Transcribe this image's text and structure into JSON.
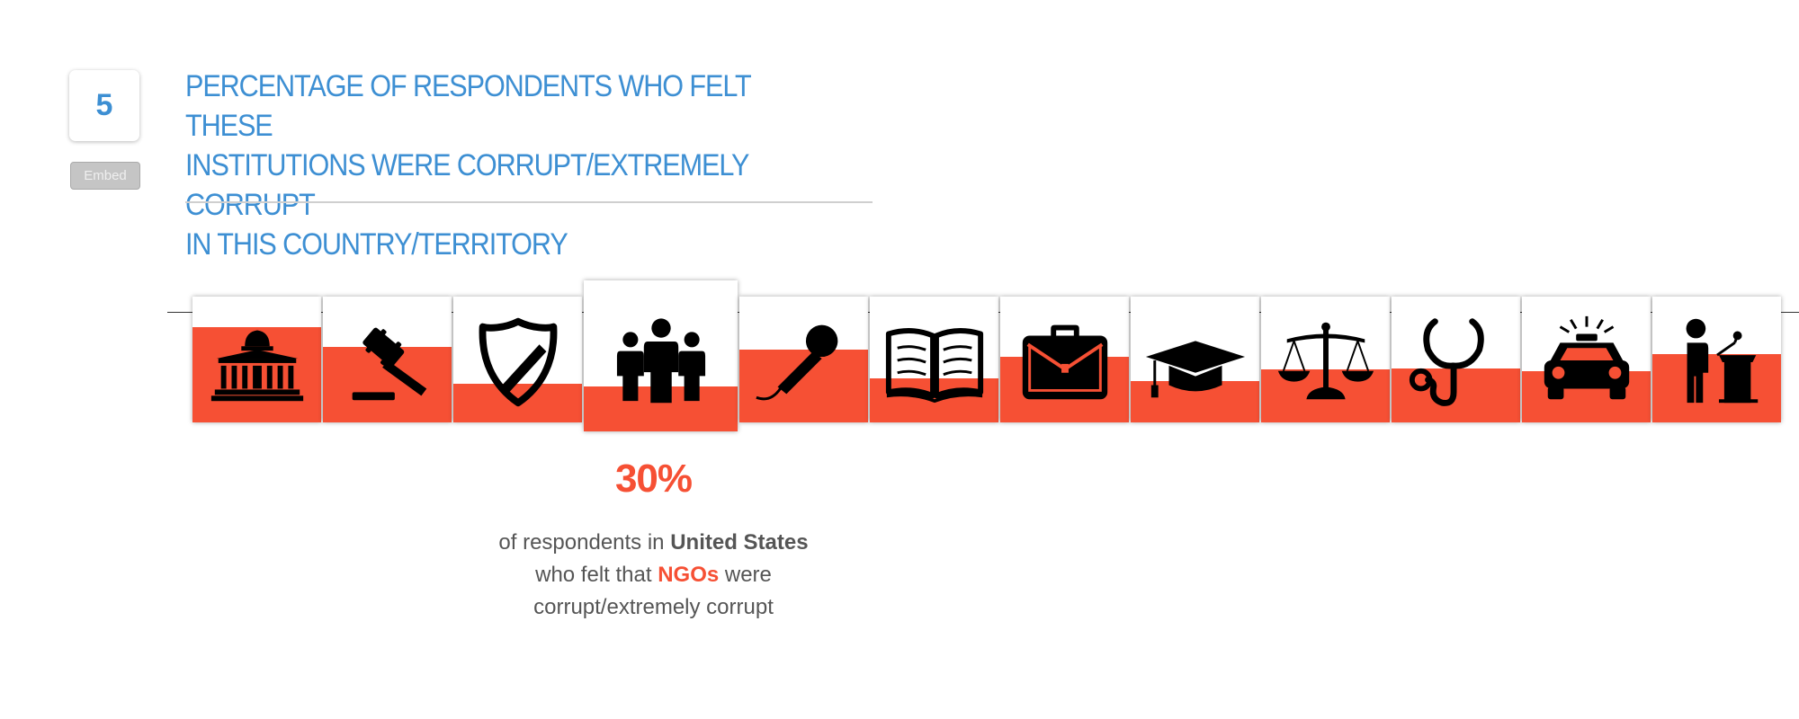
{
  "badge_number": "5",
  "embed_label": "Embed",
  "title": "PERCENTAGE OF RESPONDENTS WHO FELT THESE\nINSTITUTIONS WERE CORRUPT/EXTREMELY CORRUPT\nIN THIS COUNTRY/TERRITORY",
  "colors": {
    "accent_blue": "#3d8fd3",
    "fill_red": "#f65034",
    "text_gray": "#555555"
  },
  "chart_data": {
    "type": "bar",
    "unit": "%",
    "ylim": [
      0,
      100
    ],
    "categories": [
      {
        "icon": "capitol-building-icon",
        "value": 76
      },
      {
        "icon": "gavel-icon",
        "value": 60
      },
      {
        "icon": "police-shield-icon",
        "value": 31
      },
      {
        "icon": "people-group-icon",
        "value": 30,
        "selected": true
      },
      {
        "icon": "microphone-icon",
        "value": 58
      },
      {
        "icon": "open-book-icon",
        "value": 35
      },
      {
        "icon": "briefcase-icon",
        "value": 52
      },
      {
        "icon": "graduation-cap-icon",
        "value": 33
      },
      {
        "icon": "scales-of-justice-icon",
        "value": 42
      },
      {
        "icon": "stethoscope-icon",
        "value": 43
      },
      {
        "icon": "police-car-icon",
        "value": 41
      },
      {
        "icon": "speaker-podium-icon",
        "value": 54
      }
    ]
  },
  "selection": {
    "percent_label": "30%",
    "desc_prefix": "of respondents in ",
    "country": "United States",
    "desc_mid": "who felt that ",
    "institution": "NGOs",
    "desc_mid2": " were",
    "desc_suffix": "corrupt/extremely corrupt"
  }
}
